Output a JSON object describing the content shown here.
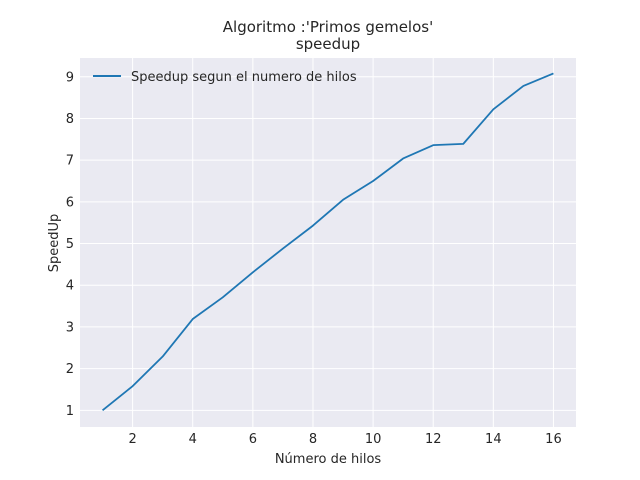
{
  "chart_data": {
    "type": "line",
    "title_line1": "Algoritmo :'Primos gemelos'",
    "title_line2": "speedup",
    "xlabel": "Número de hilos",
    "ylabel": "SpeedUp",
    "xlim": [
      0.25,
      16.75
    ],
    "ylim": [
      0.6,
      9.45
    ],
    "xticks": [
      2,
      4,
      6,
      8,
      10,
      12,
      14,
      16
    ],
    "yticks": [
      1,
      2,
      3,
      4,
      5,
      6,
      7,
      8,
      9
    ],
    "grid": true,
    "legend_position": "top-left",
    "colors": {
      "plot_background": "#eaeaf2",
      "grid": "#ffffff",
      "line": "#1f77b4"
    },
    "series": [
      {
        "name": "Speedup segun el numero de hilos",
        "x": [
          1,
          2,
          3,
          4,
          5,
          6,
          7,
          8,
          9,
          10,
          11,
          12,
          13,
          14,
          15,
          16
        ],
        "values": [
          1.0,
          1.58,
          2.29,
          3.19,
          3.71,
          4.31,
          4.88,
          5.43,
          6.05,
          6.5,
          7.04,
          7.36,
          7.39,
          8.22,
          8.78,
          9.08
        ]
      }
    ]
  }
}
